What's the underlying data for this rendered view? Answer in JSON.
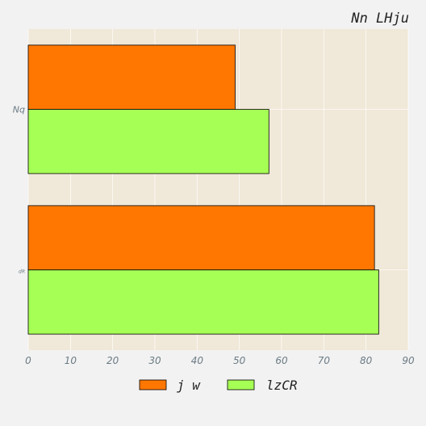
{
  "chart_data": {
    "type": "bar",
    "orientation": "horizontal",
    "title": "Nn LHju",
    "xlabel": "",
    "ylabel": "",
    "categories": [
      "Nq",
      "dR"
    ],
    "series": [
      {
        "name": "j w",
        "values": [
          49,
          82
        ],
        "color": "#ff7700"
      },
      {
        "name": "lzCR",
        "values": [
          57,
          83
        ],
        "color": "#a6ff55"
      }
    ],
    "xlim": [
      0,
      90
    ],
    "xticks": [
      0,
      10,
      20,
      30,
      40,
      50,
      60,
      70,
      80,
      90
    ],
    "grid": true,
    "legend_position": "bottom-center",
    "plot_background": "#f0e8d8",
    "page_background": "#f2f2f2"
  }
}
